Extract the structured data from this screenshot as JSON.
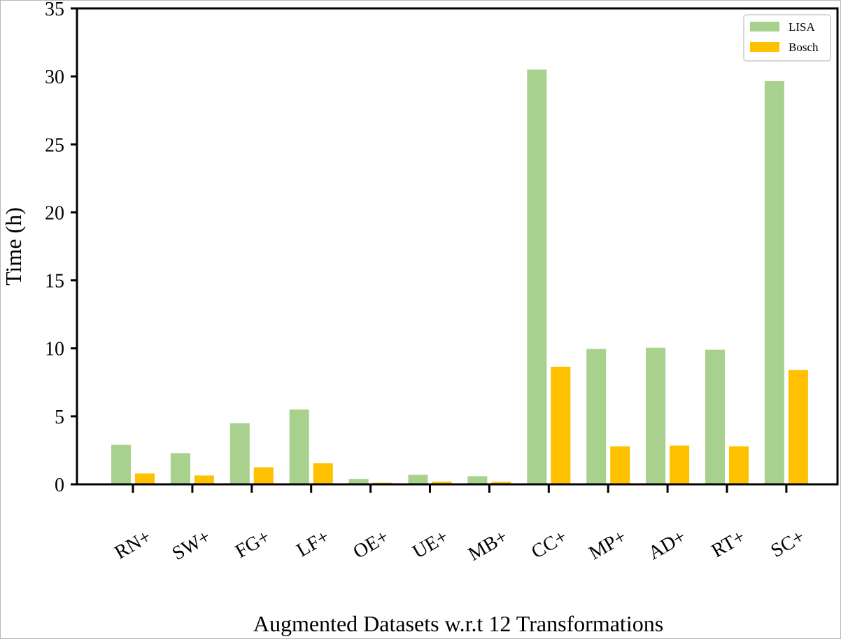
{
  "chart_data": {
    "type": "bar",
    "title": "",
    "xlabel": "Augmented Datasets w.r.t 12 Transformations",
    "ylabel": "Time (h)",
    "ylim": [
      0,
      35
    ],
    "yticks": [
      "0",
      "5",
      "10",
      "15",
      "20",
      "25",
      "30",
      "35"
    ],
    "categories": [
      "RN+",
      "SW+",
      "FG+",
      "LF+",
      "OE+",
      "UE+",
      "MB+",
      "CC+",
      "MP+",
      "AD+",
      "RT+",
      "SC+"
    ],
    "series": [
      {
        "name": "LISA",
        "color": "#a9d18e",
        "values": [
          2.9,
          2.3,
          4.5,
          5.5,
          0.4,
          0.7,
          0.6,
          30.5,
          9.95,
          10.05,
          9.9,
          29.65
        ]
      },
      {
        "name": "Bosch",
        "color": "#ffc000",
        "values": [
          0.8,
          0.65,
          1.25,
          1.55,
          0.12,
          0.2,
          0.18,
          8.65,
          2.8,
          2.85,
          2.8,
          8.4
        ]
      }
    ],
    "grid": false,
    "legend_position": "top-right",
    "tick_label_rotation": -30
  }
}
